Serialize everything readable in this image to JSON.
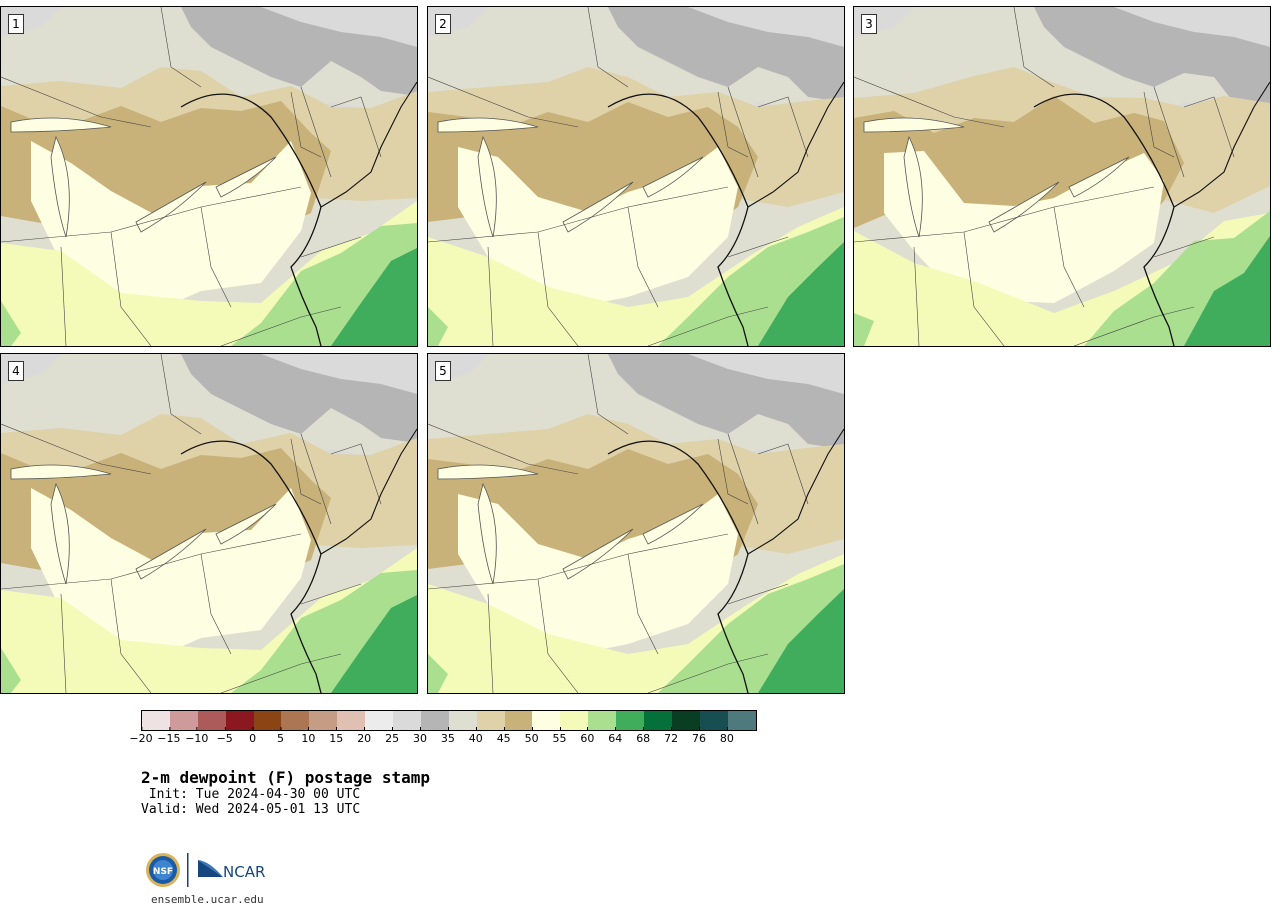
{
  "panels": [
    {
      "label": "1"
    },
    {
      "label": "2"
    },
    {
      "label": "3"
    },
    {
      "label": "4"
    },
    {
      "label": "5"
    }
  ],
  "colorbar": {
    "colors": [
      "#efe2e2",
      "#cf9a9a",
      "#ad5a5a",
      "#8b1720",
      "#8b4414",
      "#ab7651",
      "#c59d85",
      "#dfc0b2",
      "#ececec",
      "#dadada",
      "#b5b5b5",
      "#dedfd0",
      "#dfd1a8",
      "#c8b27a",
      "#fefee2",
      "#f4fbb8",
      "#a9df8e",
      "#40ad5c",
      "#04703a",
      "#093e23",
      "#164e52",
      "#4e797d"
    ],
    "tick_labels": [
      "−20",
      "−15",
      "−10",
      "−5",
      "0",
      "5",
      "10",
      "15",
      "20",
      "25",
      "30",
      "35",
      "40",
      "45",
      "50",
      "55",
      "60",
      "64",
      "68",
      "72",
      "76",
      "80"
    ]
  },
  "title": "2-m dewpoint (F) postage stamp",
  "init": " Init: Tue 2024-04-30 00 UTC",
  "valid": "Valid: Wed 2024-05-01 13 UTC",
  "site": "ensemble.ucar.edu",
  "logo_text": {
    "nsf": "NSF",
    "ncar": "NCAR"
  }
}
